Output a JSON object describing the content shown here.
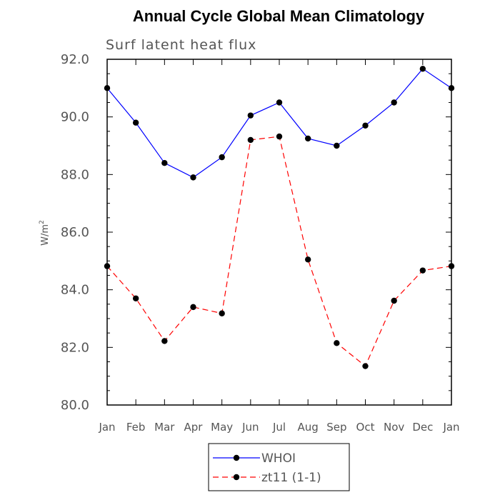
{
  "chart_data": {
    "type": "line",
    "title": "Annual Cycle Global Mean Climatology",
    "subtitle": "Surf latent heat flux",
    "xlabel": "",
    "ylabel": "W/m",
    "ylabel_sup": "2",
    "categories": [
      "Jan",
      "Feb",
      "Mar",
      "Apr",
      "May",
      "Jun",
      "Jul",
      "Aug",
      "Sep",
      "Oct",
      "Nov",
      "Dec",
      "Jan"
    ],
    "ylim": [
      80.0,
      92.0
    ],
    "yticks": [
      "80.0",
      "82.0",
      "84.0",
      "86.0",
      "88.0",
      "90.0",
      "92.0"
    ],
    "series": [
      {
        "name": "WHOI",
        "color": "#0000ff",
        "dashed": false,
        "values": [
          91.0,
          89.8,
          88.4,
          87.9,
          88.6,
          90.05,
          90.5,
          89.25,
          89.0,
          89.7,
          90.5,
          91.67,
          91.0
        ]
      },
      {
        "name": "zt11 (1-1)",
        "color": "#ff0000",
        "dashed": true,
        "values": [
          84.82,
          83.7,
          82.22,
          83.4,
          83.18,
          89.2,
          89.32,
          85.05,
          82.15,
          81.35,
          83.62,
          84.67,
          84.82
        ]
      }
    ],
    "legend_position": "bottom"
  }
}
